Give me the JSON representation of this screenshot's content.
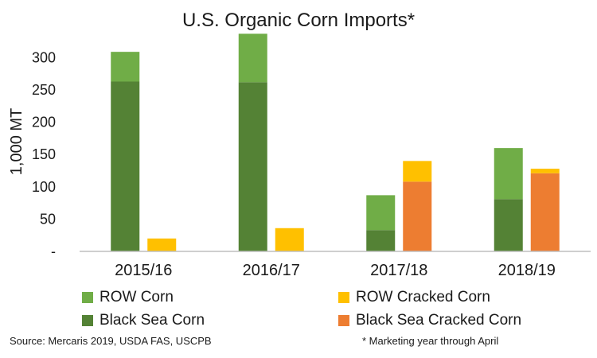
{
  "chart_data": {
    "type": "bar",
    "stacked": true,
    "title": "U.S. Organic Corn Imports*",
    "xlabel": "",
    "ylabel": "1,000 MT",
    "ylim": [
      0,
      340
    ],
    "yticks": [
      0,
      50,
      100,
      150,
      200,
      250,
      300
    ],
    "ytick_labels": [
      "-",
      "50",
      "100",
      "150",
      "200",
      "250",
      "300"
    ],
    "categories": [
      "2015/16",
      "2016/17",
      "2017/18",
      "2018/19"
    ],
    "grid": false,
    "legend_position": "bottom",
    "stacks": [
      {
        "name": "corn",
        "series": [
          {
            "name": "Black Sea Corn",
            "color": "#548235",
            "values": [
              263,
              262,
              33,
              81
            ]
          },
          {
            "name": "ROW Corn",
            "color": "#70ad47",
            "values": [
              46,
              75,
              54,
              79
            ]
          }
        ]
      },
      {
        "name": "cracked",
        "series": [
          {
            "name": "Black Sea Cracked Corn",
            "color": "#ed7d31",
            "values": [
              0,
              0,
              108,
              121
            ]
          },
          {
            "name": "ROW Cracked Corn",
            "color": "#ffc000",
            "values": [
              20,
              36,
              32,
              7
            ]
          }
        ]
      }
    ]
  },
  "legend": [
    {
      "label": "ROW Corn",
      "color": "#70ad47"
    },
    {
      "label": "ROW Cracked Corn",
      "color": "#ffc000"
    },
    {
      "label": "Black Sea Corn",
      "color": "#548235"
    },
    {
      "label": "Black Sea Cracked Corn",
      "color": "#ed7d31"
    }
  ],
  "footer": {
    "source": "Source: Mercaris 2019,  USDA FAS, USCPB",
    "note": "* Marketing year through April"
  },
  "colors": {
    "axis": "#bfbfbf",
    "text": "#1a1a1a"
  }
}
